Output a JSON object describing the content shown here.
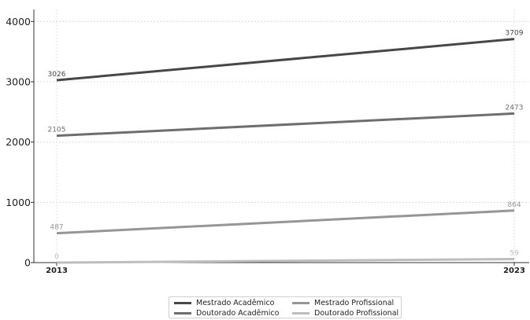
{
  "chart_data": {
    "type": "line",
    "x": [
      "2013",
      "2023"
    ],
    "series": [
      {
        "name": "Mestrado Acadêmico",
        "values": [
          3026,
          3709
        ],
        "labels": [
          "3026",
          "3709"
        ],
        "color": "#474747"
      },
      {
        "name": "Doutorado Acadêmico",
        "values": [
          2105,
          2473
        ],
        "labels": [
          "2105",
          "2473"
        ],
        "color": "#6e6e6e"
      },
      {
        "name": "Mestrado Profissional",
        "values": [
          487,
          864
        ],
        "labels": [
          "487",
          "864"
        ],
        "color": "#969696"
      },
      {
        "name": "Doutorado Profissional",
        "values": [
          0,
          59
        ],
        "labels": [
          "0",
          "59"
        ],
        "color": "#bdbdbd"
      }
    ],
    "ylim": [
      0,
      4200
    ],
    "yticks": [
      "0",
      "1000",
      "2000",
      "3000",
      "4000"
    ],
    "title": "",
    "xlabel": "",
    "ylabel": "",
    "grid": true,
    "legend_position": "bottom-center"
  }
}
